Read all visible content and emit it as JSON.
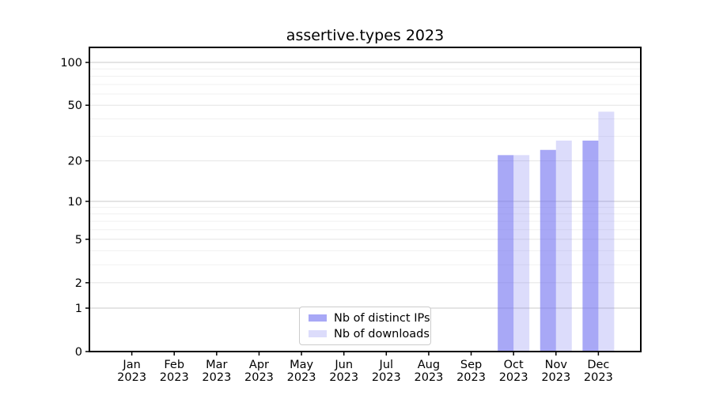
{
  "title": "assertive.types 2023",
  "year": "2023",
  "colors": {
    "bar_distinct_ips": "rgba(114,114,240,0.62)",
    "bar_downloads": "rgba(114,114,240,0.25)",
    "axis": "#000000",
    "grid_decade": "#c9c9c9",
    "grid_labeled": "#e4e4e4",
    "grid_minor": "#f0f0f0",
    "legend_border": "#cccccc",
    "background": "#ffffff"
  },
  "legend": {
    "items": [
      {
        "label": "Nb of distinct IPs",
        "color": "rgba(114,114,240,0.62)"
      },
      {
        "label": "Nb of downloads",
        "color": "rgba(114,114,240,0.25)"
      }
    ]
  },
  "chart_data": {
    "type": "bar",
    "title": "assertive.types 2023",
    "categories": [
      "Jan 2023",
      "Feb 2023",
      "Mar 2023",
      "Apr 2023",
      "May 2023",
      "Jun 2023",
      "Jul 2023",
      "Aug 2023",
      "Sep 2023",
      "Oct 2023",
      "Nov 2023",
      "Dec 2023"
    ],
    "series": [
      {
        "name": "Nb of distinct IPs",
        "color": "rgba(114,114,240,0.62)",
        "values": [
          0,
          0,
          0,
          0,
          0,
          0,
          0,
          0,
          0,
          22,
          24,
          28
        ]
      },
      {
        "name": "Nb of downloads",
        "color": "rgba(114,114,240,0.25)",
        "values": [
          0,
          0,
          0,
          0,
          0,
          0,
          0,
          0,
          0,
          22,
          28,
          45
        ]
      }
    ],
    "xlabel": "",
    "ylabel": "",
    "yscale": "log1p",
    "ylim": [
      0,
      128
    ],
    "ytick_labels": [
      "0",
      "1",
      "2",
      "5",
      "10",
      "20",
      "50",
      "100"
    ],
    "yticks_decade": [
      1,
      10,
      100
    ],
    "yticks_labeled_mid": [
      2,
      5,
      20,
      50
    ],
    "yticks_minor": [
      3,
      4,
      6,
      7,
      8,
      9,
      30,
      40,
      60,
      70,
      80,
      90
    ],
    "grid": "on",
    "legend_position": "lower center"
  }
}
